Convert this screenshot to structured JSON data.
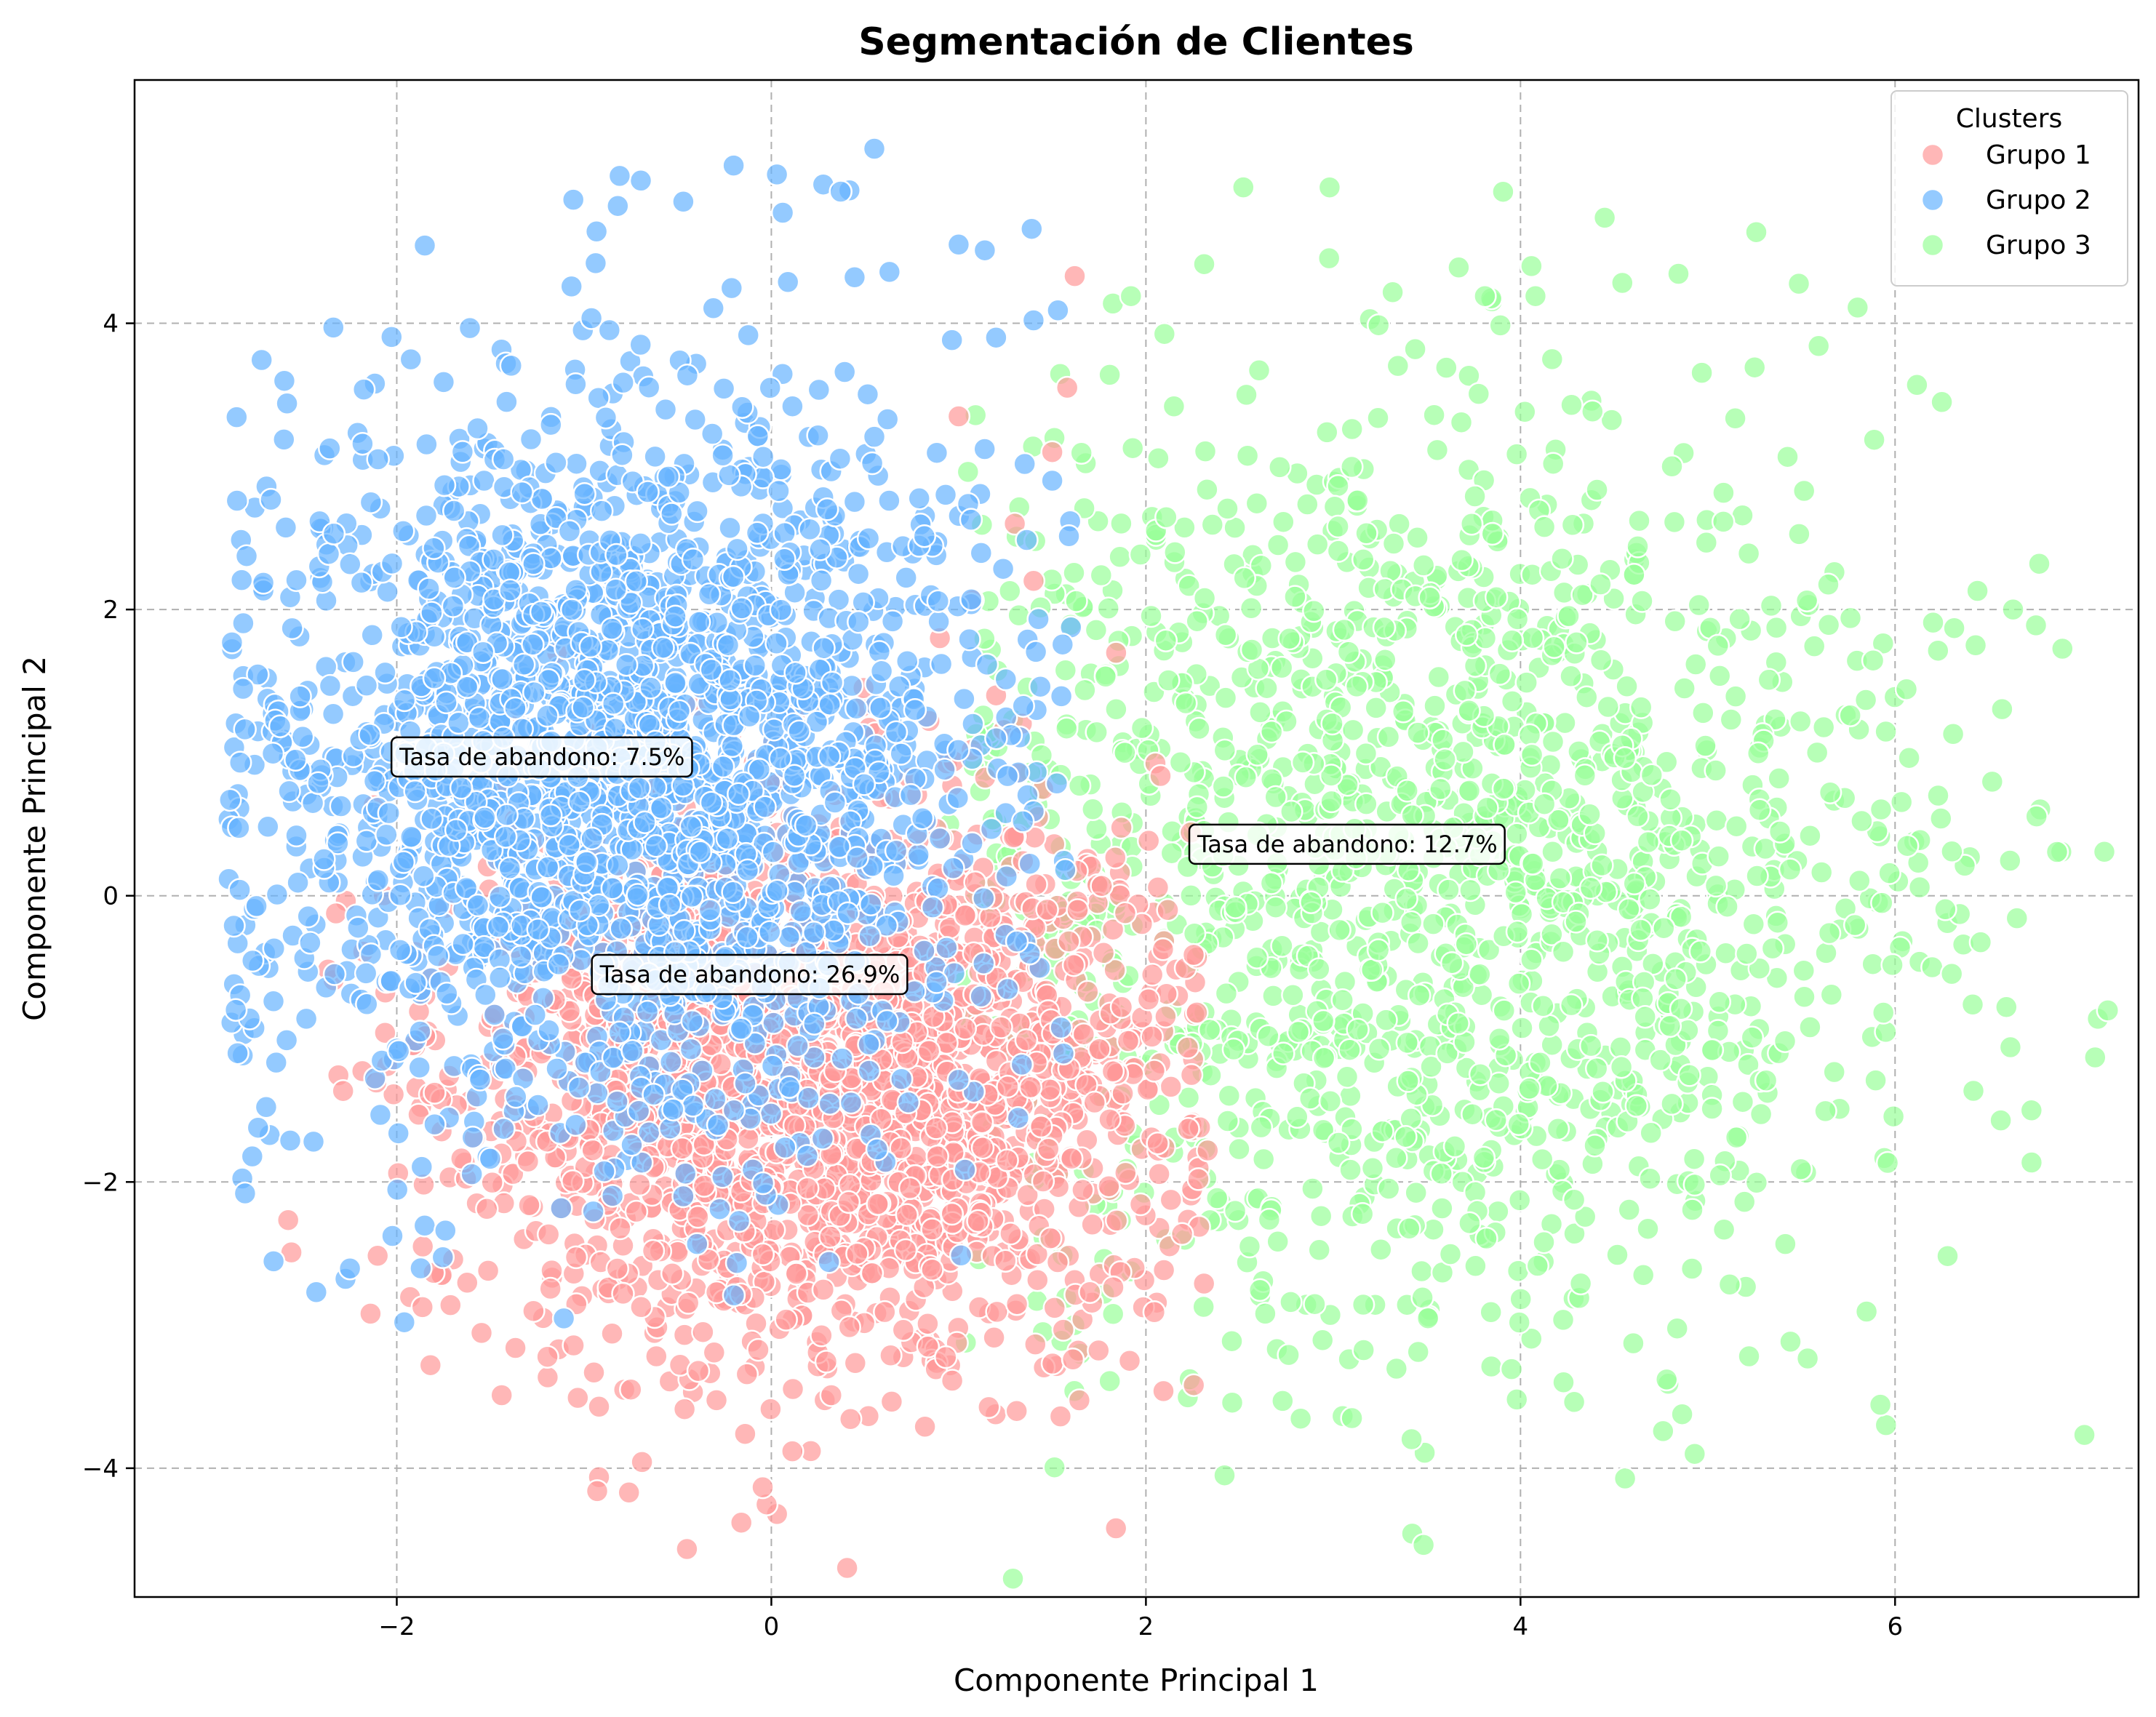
{
  "chart_data": {
    "type": "scatter",
    "title": "Segmentación de Clientes",
    "xlabel": "Componente Principal 1",
    "ylabel": "Componente Principal 2",
    "xlim": [
      -3.4,
      7.3
    ],
    "ylim": [
      -4.9,
      5.7
    ],
    "xticks": [
      -2,
      0,
      2,
      4,
      6
    ],
    "yticks": [
      -4,
      -2,
      0,
      2,
      4
    ],
    "xtick_labels": [
      "−2",
      "0",
      "2",
      "4",
      "6"
    ],
    "ytick_labels": [
      "−4",
      "−2",
      "0",
      "2",
      "4"
    ],
    "grid": true,
    "legend": {
      "title": "Clusters",
      "placement": "top-right"
    },
    "series": [
      {
        "name": "Grupo 1",
        "color": "#ff9999",
        "center": [
          0.3,
          -1.3
        ],
        "spread": [
          0.95,
          0.95
        ],
        "count": 2100,
        "points": [
          [
            1.62,
            4.33
          ],
          [
            1.58,
            3.55
          ],
          [
            1.84,
            -4.42
          ],
          [
            -0.93,
            -4.16
          ],
          [
            -0.76,
            -4.17
          ],
          [
            -0.14,
            -3.76
          ],
          [
            0.82,
            -3.71
          ],
          [
            2.33,
            -1.78
          ],
          [
            2.28,
            -1.98
          ],
          [
            2.31,
            -2.71
          ],
          [
            -2.14,
            -2.92
          ],
          [
            -1.82,
            -3.28
          ],
          [
            -1.44,
            -3.49
          ],
          [
            -0.39,
            -3.32
          ],
          [
            1.31,
            -3.6
          ],
          [
            1.61,
            -3.24
          ],
          [
            0.32,
            -3.49
          ],
          [
            -0.92,
            -3.57
          ],
          [
            -0.75,
            -3.45
          ],
          [
            1.0,
            3.35
          ],
          [
            1.3,
            2.6
          ],
          [
            0.9,
            1.8
          ],
          [
            1.4,
            2.2
          ],
          [
            1.2,
            1.4
          ],
          [
            1.5,
            3.1
          ]
        ]
      },
      {
        "name": "Grupo 2",
        "color": "#66b3ff",
        "center": [
          -0.8,
          0.9
        ],
        "spread": [
          0.95,
          1.3
        ],
        "count": 2200,
        "points": [
          [
            0.55,
            5.22
          ],
          [
            0.03,
            5.04
          ],
          [
            -0.81,
            5.03
          ],
          [
            -0.82,
            4.82
          ],
          [
            -0.47,
            4.85
          ],
          [
            0.37,
            4.92
          ],
          [
            1.39,
            4.66
          ],
          [
            1.0,
            4.55
          ],
          [
            1.14,
            4.51
          ],
          [
            1.53,
            4.09
          ],
          [
            -2.1,
            3.05
          ],
          [
            -1.43,
            3.05
          ],
          [
            -2.88,
            1.77
          ],
          [
            -2.89,
            0.67
          ],
          [
            -2.87,
            -0.21
          ],
          [
            -2.85,
            -1.1
          ],
          [
            -2.81,
            -2.08
          ],
          [
            -2.43,
            -2.77
          ],
          [
            -1.96,
            -2.98
          ],
          [
            -0.47,
            -2.1
          ],
          [
            -0.2,
            -1.5
          ],
          [
            0.9,
            0.4
          ],
          [
            1.2,
            1.1
          ],
          [
            1.5,
            2.9
          ],
          [
            1.2,
            3.9
          ]
        ]
      },
      {
        "name": "Grupo 3",
        "color": "#99ff99",
        "center": [
          3.6,
          0.1
        ],
        "spread": [
          1.35,
          1.65
        ],
        "count": 1600,
        "points": [
          [
            2.52,
            4.95
          ],
          [
            1.92,
            4.19
          ],
          [
            3.67,
            4.39
          ],
          [
            3.81,
            4.19
          ],
          [
            4.08,
            4.19
          ],
          [
            5.8,
            4.11
          ],
          [
            6.77,
            2.32
          ],
          [
            6.63,
            2.0
          ],
          [
            6.44,
            2.13
          ],
          [
            6.43,
            1.75
          ],
          [
            6.25,
            3.45
          ],
          [
            6.31,
            1.13
          ],
          [
            6.23,
            0.7
          ],
          [
            5.93,
            -0.05
          ],
          [
            4.93,
            -3.9
          ],
          [
            2.42,
            -4.05
          ],
          [
            0.95,
            0.5
          ],
          [
            1.1,
            -1.5
          ],
          [
            1.45,
            -3.05
          ],
          [
            1.65,
            -3.2
          ],
          [
            3.1,
            -3.65
          ],
          [
            3.98,
            -3.52
          ],
          [
            4.23,
            -3.4
          ],
          [
            4.78,
            -3.38
          ],
          [
            2.73,
            -3.53
          ]
        ]
      }
    ],
    "annotations": [
      {
        "text": "Tasa de abandono: 7.5%",
        "x": -2.04,
        "y": 0.97
      },
      {
        "text": "Tasa de abandono: 12.7%",
        "x": 2.22,
        "y": 0.36
      },
      {
        "text": "Tasa de abandono: 26.9%",
        "x": -0.97,
        "y": -0.55
      }
    ]
  }
}
